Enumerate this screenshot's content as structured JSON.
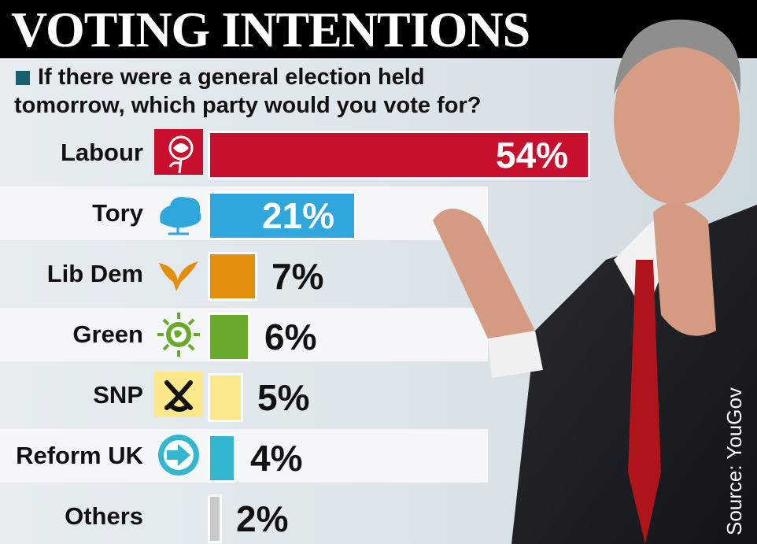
{
  "headline": "VOTING INTENTIONS",
  "question": "If there were a general election held tomorrow, which party would you vote for?",
  "source": "Source: YouGov",
  "colors": {
    "Labour": "#c8102e",
    "Tory": "#2fa6dc",
    "Lib Dem": "#e48f0c",
    "Green": "#6aaa2a",
    "SNP": "#fbe88a",
    "Reform UK": "#33b6cf",
    "Others": "#c9c9c9"
  },
  "logos": [
    "rose-icon",
    "tree-icon",
    "bird-icon",
    "globe-leaf-icon",
    "thistle-x-icon",
    "arrow-circle-icon",
    ""
  ],
  "chart_data": {
    "type": "bar",
    "orientation": "horizontal",
    "title": "VOTING INTENTIONS",
    "subtitle": "If there were a general election held tomorrow, which party would you vote for?",
    "categories": [
      "Labour",
      "Tory",
      "Lib Dem",
      "Green",
      "SNP",
      "Reform UK",
      "Others"
    ],
    "values": [
      54,
      21,
      7,
      6,
      5,
      4,
      2
    ],
    "value_labels": [
      "54%",
      "21%",
      "7%",
      "6%",
      "5%",
      "4%",
      "2%"
    ],
    "unit": "%",
    "grid": false,
    "legend": "none"
  }
}
